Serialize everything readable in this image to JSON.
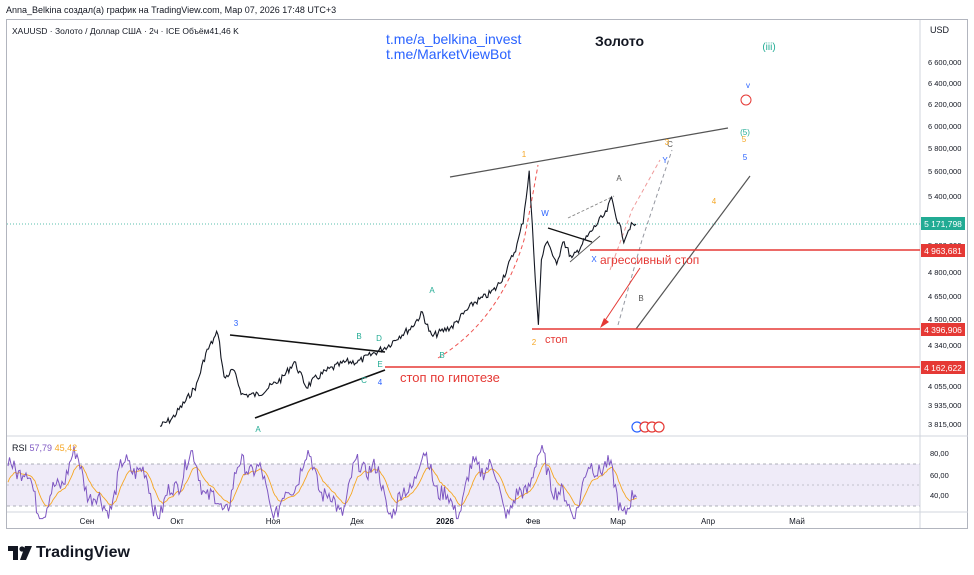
{
  "caption": "Anna_Belkina создал(а) график на TradingView.com, Мар 07, 2026 17:48 UTC+3",
  "symbol_line": "XAUUSD · Золото / Доллар США · 2ч · ICE  Объём41,46 K",
  "links": [
    "t.me/a_belkina_invest",
    "t.me/MarketViewBot"
  ],
  "currency": "USD",
  "brand": "TradingView",
  "chart_data": {
    "type": "line",
    "title": "Золото",
    "price_axis": {
      "ticks": [
        "6 600,000",
        "6 400,000",
        "6 200,000",
        "6 000,000",
        "5 800,000",
        "5 600,000",
        "5 400,000",
        "5 171,798",
        "5 000,000",
        "4 963,681",
        "4 800,000",
        "4 650,000",
        "4 500,000",
        "4 396,906",
        "4 340,000",
        "4 162,622",
        "4 055,000",
        "3 935,000",
        "3 815,000"
      ],
      "current_price": "5 171,798",
      "range": [
        3760,
        6720
      ]
    },
    "time_axis": [
      "Сен",
      "Окт",
      "Ноя",
      "Дек",
      "2026",
      "Фев",
      "Мар",
      "Апр",
      "Май"
    ],
    "price_series": [
      [
        "2025-10-01",
        3800
      ],
      [
        "2025-10-05",
        3850
      ],
      [
        "2025-10-09",
        3950
      ],
      [
        "2025-10-13",
        4060
      ],
      [
        "2025-10-16",
        4250
      ],
      [
        "2025-10-20",
        4380
      ],
      [
        "2025-10-22",
        4100
      ],
      [
        "2025-10-25",
        4150
      ],
      [
        "2025-10-28",
        4000
      ],
      [
        "2025-11-02",
        4000
      ],
      [
        "2025-11-06",
        4050
      ],
      [
        "2025-11-10",
        4100
      ],
      [
        "2025-11-14",
        4200
      ],
      [
        "2025-11-18",
        4050
      ],
      [
        "2025-11-21",
        4100
      ],
      [
        "2025-11-25",
        4150
      ],
      [
        "2025-12-01",
        4200
      ],
      [
        "2025-12-05",
        4200
      ],
      [
        "2025-12-10",
        4250
      ],
      [
        "2025-12-15",
        4300
      ],
      [
        "2025-12-18",
        4350
      ],
      [
        "2025-12-22",
        4400
      ],
      [
        "2025-12-26",
        4520
      ],
      [
        "2025-12-29",
        4350
      ],
      [
        "2026-01-01",
        4380
      ],
      [
        "2026-01-05",
        4420
      ],
      [
        "2026-01-08",
        4500
      ],
      [
        "2026-01-12",
        4600
      ],
      [
        "2026-01-16",
        4650
      ],
      [
        "2026-01-19",
        4700
      ],
      [
        "2026-01-22",
        4800
      ],
      [
        "2026-01-26",
        5000
      ],
      [
        "2026-01-28",
        5200
      ],
      [
        "2026-01-29",
        5400
      ],
      [
        "2026-01-30",
        5590
      ],
      [
        "2026-01-31",
        5150
      ],
      [
        "2026-02-02",
        4420
      ],
      [
        "2026-02-03",
        4900
      ],
      [
        "2026-02-05",
        5050
      ],
      [
        "2026-02-08",
        4850
      ],
      [
        "2026-02-10",
        5050
      ],
      [
        "2026-02-13",
        4900
      ],
      [
        "2026-02-16",
        5000
      ],
      [
        "2026-02-19",
        5100
      ],
      [
        "2026-02-22",
        5200
      ],
      [
        "2026-02-24",
        5250
      ],
      [
        "2026-02-26",
        5380
      ],
      [
        "2026-02-28",
        5200
      ],
      [
        "2026-03-02",
        5050
      ],
      [
        "2026-03-04",
        5150
      ],
      [
        "2026-03-06",
        5171.8
      ]
    ],
    "horizontal_levels": [
      {
        "price": "4 963,681",
        "label": "агрессивный стоп"
      },
      {
        "price": "4 396,906",
        "label": "стоп"
      },
      {
        "price": "4 162,622",
        "label": "стоп по гипотезе"
      }
    ],
    "wave_labels": [
      "3",
      "A",
      "B",
      "C",
      "D",
      "E",
      "4",
      "A",
      "B",
      "1",
      "2",
      "W",
      "X",
      "Y",
      "A",
      "B",
      "C",
      "3",
      "4",
      "5",
      "(5)",
      "5",
      "v",
      "(iii)"
    ],
    "rsi": {
      "label": "RSI",
      "value": "57,79",
      "ma_value": "45,42",
      "ticks": [
        "80,00",
        "60,00",
        "40,00"
      ],
      "band": [
        30,
        70
      ]
    }
  }
}
